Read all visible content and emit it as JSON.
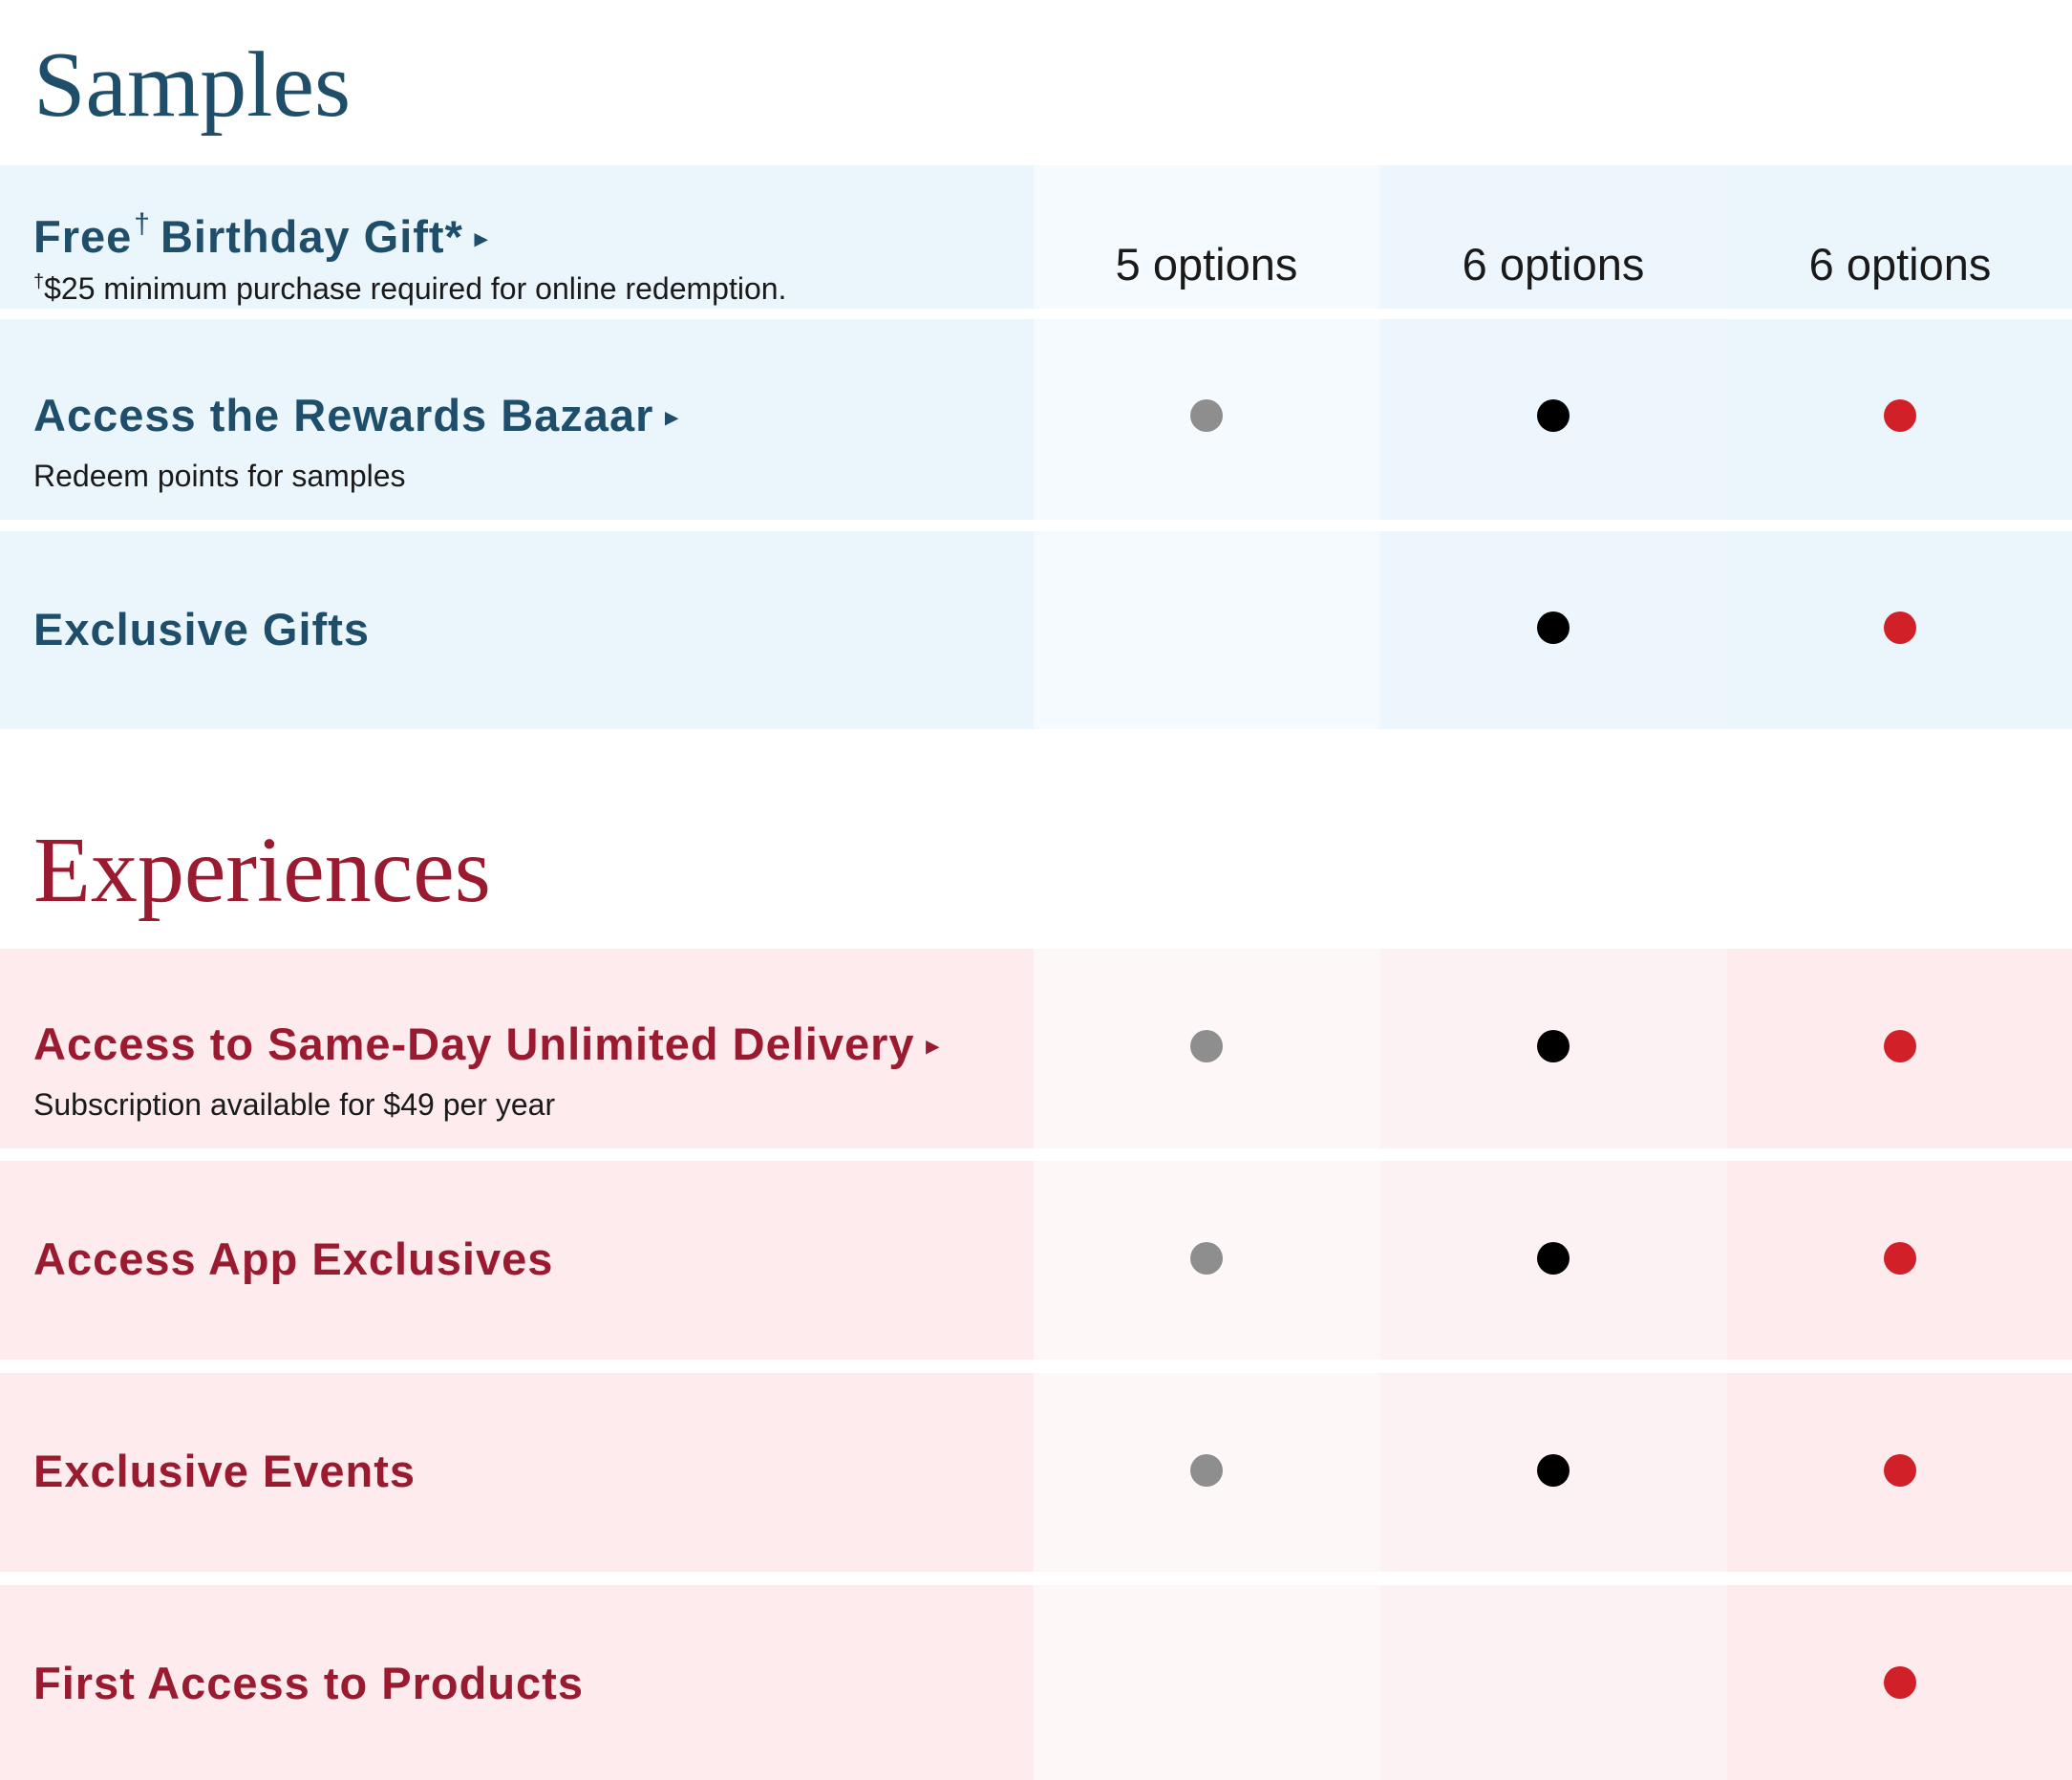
{
  "sections": {
    "samples": {
      "title": "Samples",
      "rows": [
        {
          "feature": "Free",
          "feature_dagger": "†",
          "feature_rest": "Birthday Gift*",
          "note_dagger": "†",
          "note": "$25 minimum purchase required for online redemption.",
          "values": [
            "5 options",
            "6 options",
            "6 options"
          ]
        },
        {
          "feature": "Access the Rewards Bazaar",
          "note": "Redeem points for samples",
          "tiers": [
            true,
            true,
            true
          ]
        },
        {
          "feature": "Exclusive Gifts",
          "tiers": [
            false,
            true,
            true
          ]
        }
      ]
    },
    "experiences": {
      "title": "Experiences",
      "rows": [
        {
          "feature": "Access to Same-Day Unlimited Delivery",
          "note": "Subscription available for $49 per year",
          "tiers": [
            true,
            true,
            true
          ]
        },
        {
          "feature": "Access App Exclusives",
          "tiers": [
            true,
            true,
            true
          ]
        },
        {
          "feature": "Exclusive Events",
          "tiers": [
            true,
            true,
            true
          ]
        },
        {
          "feature": "First Access to Products",
          "tiers": [
            false,
            false,
            true
          ]
        }
      ]
    }
  },
  "link_arrow": "▸",
  "tier_dot_colors": [
    "#8e8e8e",
    "#000000",
    "#d12027"
  ]
}
